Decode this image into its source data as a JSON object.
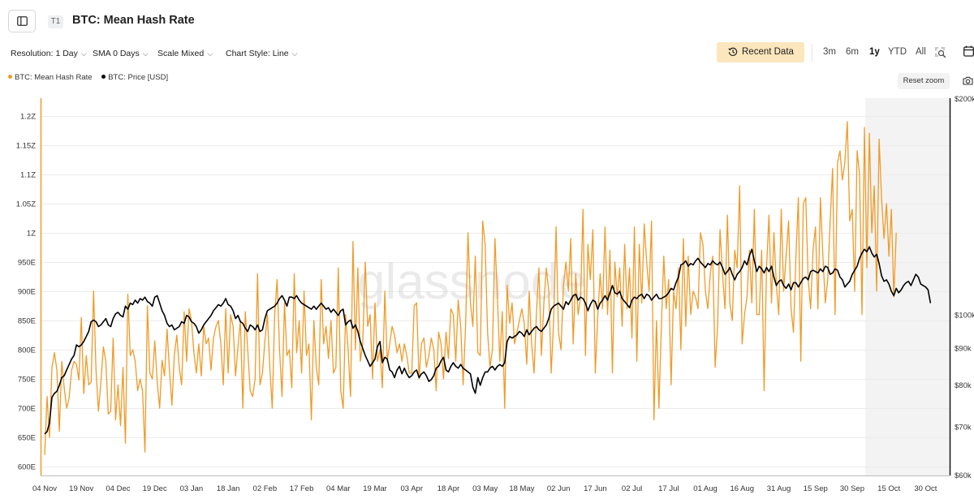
{
  "header": {
    "title": "BTC: Mean Hash Rate",
    "tier_badge": "T1",
    "sidebar_icon": "sidebar-toggle-icon"
  },
  "toolbar": {
    "resolution": "Resolution: 1 Day",
    "sma": "SMA 0 Days",
    "scale": "Scale Mixed",
    "chart_style": "Chart Style: Line",
    "recent_data": "Recent Data",
    "ranges": [
      "3m",
      "6m",
      "1y",
      "YTD",
      "All"
    ],
    "active_range": "1y"
  },
  "legend": {
    "hash_rate": "BTC: Mean Hash Rate",
    "price": "BTC: Price [USD]"
  },
  "reset_zoom": "Reset zoom",
  "colors": {
    "hash_rate": "#f09a28",
    "price": "#000000",
    "recent_btn_bg": "#fbe6bd",
    "forecast_shade": "#f3f3f3"
  },
  "chart_data": {
    "type": "line",
    "watermark": "glassnode",
    "x_tick_labels": [
      "04 Nov",
      "19 Nov",
      "04 Dec",
      "19 Dec",
      "03 Jan",
      "18 Jan",
      "02 Feb",
      "17 Feb",
      "04 Mar",
      "19 Mar",
      "03 Apr",
      "18 Apr",
      "03 May",
      "18 May",
      "02 Jun",
      "17 Jun",
      "02 Jul",
      "17 Jul",
      "01 Aug",
      "16 Aug",
      "31 Aug",
      "15 Sep",
      "30 Sep",
      "15 Oct",
      "30 Oct"
    ],
    "left_axis": {
      "unit": "E",
      "range": [
        585,
        1230
      ],
      "ticks": [
        600,
        650,
        700,
        750,
        800,
        850,
        900,
        950,
        1000,
        1050,
        1100,
        1150,
        1200
      ],
      "tick_labels": [
        "600E",
        "650E",
        "700E",
        "750E",
        "800E",
        "850E",
        "900E",
        "950E",
        "1Z",
        "1.05Z",
        "1.1Z",
        "1.15Z",
        "1.2Z"
      ]
    },
    "right_axis": {
      "scale": "log",
      "range": [
        60000,
        200000
      ],
      "ticks": [
        60000,
        70000,
        80000,
        90000,
        100000,
        200000
      ],
      "tick_labels": [
        "$60k",
        "$70k",
        "$80k",
        "$90k",
        "$100k",
        "$200k"
      ]
    },
    "series": [
      {
        "name": "BTC: Mean Hash Rate",
        "axis": "left",
        "x_start_day": 0,
        "values": [
          620,
          720,
          650,
          770,
          795,
          765,
          660,
          780,
          735,
          700,
          718,
          765,
          780,
          775,
          748,
          855,
          725,
          790,
          740,
          745,
          900,
          765,
          695,
          745,
          805,
          780,
          690,
          695,
          820,
          680,
          740,
          670,
          770,
          640,
          895,
          790,
          800,
          780,
          730,
          750,
          730,
          625,
          875,
          760,
          750,
          815,
          745,
          700,
          782,
          755,
          835,
          765,
          705,
          790,
          825,
          770,
          740,
          865,
          780,
          870,
          850,
          795,
          760,
          810,
          755,
          840,
          810,
          820,
          765,
          820,
          840,
          850,
          810,
          740,
          870,
          760,
          860,
          840,
          755,
          805,
          850,
          700,
          865,
          800,
          730,
          720,
          750,
          930,
          740,
          760,
          815,
          860,
          770,
          700,
          860,
          920,
          800,
          720,
          880,
          790,
          800,
          735,
          930,
          795,
          850,
          760,
          900,
          790,
          810,
          680,
          850,
          770,
          740,
          920,
          810,
          840,
          785,
          850,
          760,
          770,
          940,
          730,
          700,
          860,
          800,
          720,
          985,
          800,
          940,
          780,
          810,
          950,
          840,
          860,
          750,
          880,
          780,
          800,
          735,
          900,
          780,
          810,
          840,
          825,
          795,
          810,
          780,
          810,
          790,
          760,
          760,
          875,
          880,
          750,
          810,
          820,
          770,
          790,
          820,
          800,
          730,
          830,
          810,
          750,
          830,
          785,
          870,
          860,
          780,
          885,
          840,
          740,
          840,
          1000,
          880,
          840,
          960,
          795,
          790,
          1020,
          980,
          830,
          770,
          800,
          990,
          890,
          780,
          865,
          700,
          910,
          845,
          880,
          810,
          830,
          850,
          870,
          845,
          775,
          900,
          810,
          760,
          865,
          940,
          790,
          880,
          940,
          900,
          760,
          850,
          1010,
          830,
          800,
          910,
          950,
          900,
          990,
          810,
          930,
          860,
          890,
          1040,
          790,
          980,
          920,
          1005,
          760,
          855,
          930,
          870,
          1010,
          860,
          970,
          760,
          950,
          890,
          940,
          840,
          980,
          870,
          940,
          820,
          1010,
          780,
          980,
          880,
          1015,
          950,
          900,
          1020,
          680,
          850,
          700,
          840,
          960,
          870,
          920,
          740,
          900,
          870,
          940,
          800,
          990,
          840,
          960,
          860,
          900,
          890,
          870,
          1000,
          980,
          900,
          870,
          930,
          960,
          770,
          840,
          1005,
          930,
          870,
          1030,
          880,
          850,
          970,
          940,
          1080,
          810,
          860,
          890,
          970,
          880,
          1040,
          860,
          860,
          970,
          730,
          940,
          1030,
          880,
          1000,
          910,
          860,
          1040,
          900,
          960,
          1020,
          870,
          830,
          960,
          1060,
          780,
          1050,
          1060,
          920,
          870,
          970,
          1010,
          870,
          1060,
          960,
          880,
          920,
          1020,
          1110,
          860,
          1120,
          1140,
          1090,
          1120,
          1190,
          1020,
          1040,
          900,
          1140,
          1100,
          860,
          1180,
          940,
          1170,
          1000,
          1080,
          900,
          1160,
          1060,
          990,
          1050,
          960,
          1040,
          890,
          1000
        ]
      },
      {
        "name": "BTC: Price [USD]",
        "axis": "right",
        "x_start_day": 0,
        "values": [
          68500,
          69000,
          71000,
          77000,
          78000,
          78500,
          80000,
          82000,
          82500,
          84000,
          85500,
          87000,
          88000,
          91000,
          90500,
          91000,
          92000,
          93500,
          95000,
          98000,
          98500,
          98000,
          96500,
          97000,
          98000,
          99000,
          97000,
          96500,
          99000,
          100500,
          101000,
          100000,
          99500,
          103000,
          102000,
          104000,
          103500,
          105000,
          104000,
          105500,
          105000,
          106000,
          104500,
          104000,
          103000,
          106000,
          106500,
          104000,
          101500,
          100000,
          97500,
          96500,
          97000,
          95500,
          96000,
          96500,
          98000,
          97500,
          100000,
          99500,
          98000,
          97500,
          96500,
          94500,
          95500,
          97000,
          98000,
          99000,
          100000,
          101500,
          102500,
          103500,
          103000,
          104000,
          105500,
          103500,
          103000,
          101500,
          99000,
          100000,
          98000,
          97500,
          96000,
          95000,
          97000,
          96500,
          95500,
          97000,
          95000,
          95500,
          99000,
          101500,
          102000,
          102500,
          103000,
          104000,
          105500,
          106500,
          105000,
          103000,
          106000,
          106000,
          105500,
          106500,
          105000,
          104000,
          103500,
          103000,
          102500,
          102000,
          103000,
          102000,
          103000,
          104000,
          103000,
          102000,
          102500,
          101000,
          102000,
          101000,
          100000,
          101500,
          102000,
          97000,
          98000,
          98500,
          96000,
          97000,
          95000,
          92000,
          90000,
          88000,
          86500,
          85000,
          86000,
          87000,
          90500,
          92000,
          86000,
          87500,
          87000,
          84000,
          83500,
          82000,
          84000,
          85000,
          83000,
          84500,
          83000,
          82000,
          82500,
          83500,
          84000,
          82000,
          83000,
          83500,
          82500,
          81000,
          81500,
          82500,
          84500,
          85000,
          86500,
          87500,
          84000,
          83500,
          85000,
          86000,
          85000,
          84500,
          85500,
          84500,
          84000,
          83500,
          83000,
          79500,
          78000,
          82000,
          80000,
          82000,
          83500,
          83500,
          84500,
          85000,
          84000,
          85000,
          85500,
          85000,
          86000,
          92000,
          93500,
          93000,
          93500,
          94000,
          95000,
          94500,
          93500,
          95500,
          94000,
          95000,
          96000,
          96500,
          95500,
          95000,
          96000,
          97000,
          99000,
          102000,
          103000,
          103500,
          104000,
          103000,
          102000,
          104500,
          103500,
          105000,
          106500,
          107000,
          105000,
          106000,
          105500,
          104000,
          101500,
          103500,
          105000,
          104500,
          102000,
          104000,
          105000,
          106500,
          105000,
          107500,
          110000,
          107500,
          107000,
          108000,
          105500,
          104500,
          103500,
          102500,
          105000,
          106000,
          105500,
          106500,
          107000,
          105500,
          107000,
          106500,
          105000,
          106000,
          107000,
          105500,
          105500,
          106000,
          106500,
          107500,
          109000,
          108500,
          111000,
          113000,
          117500,
          118000,
          119000,
          117000,
          118000,
          117500,
          119000,
          120000,
          118500,
          117500,
          116500,
          118000,
          117500,
          119000,
          118000,
          117500,
          118500,
          116500,
          114000,
          115000,
          116500,
          114000,
          112000,
          114000,
          115000,
          116500,
          119000,
          117500,
          121000,
          123500,
          119000,
          115000,
          117000,
          116000,
          114500,
          116500,
          115000,
          117000,
          113000,
          110000,
          111500,
          112000,
          110000,
          109000,
          110500,
          108500,
          111000,
          111000,
          109500,
          111000,
          112500,
          113000,
          112000,
          115000,
          115500,
          115000,
          114500,
          116000,
          115000,
          117000,
          116500,
          114000,
          114500,
          116000,
          115500,
          113000,
          112000,
          109500,
          110500,
          111500,
          114000,
          115500,
          117000,
          120000,
          122000,
          123500,
          122500,
          124500,
          122000,
          120500,
          121500,
          118000,
          113500,
          111500,
          112000,
          110500,
          108000,
          106500,
          109000,
          107500,
          108500,
          110000,
          111000,
          111500,
          110000,
          112000,
          114000,
          113000,
          110500,
          110000,
          109500,
          108500,
          104000
        ]
      }
    ]
  }
}
